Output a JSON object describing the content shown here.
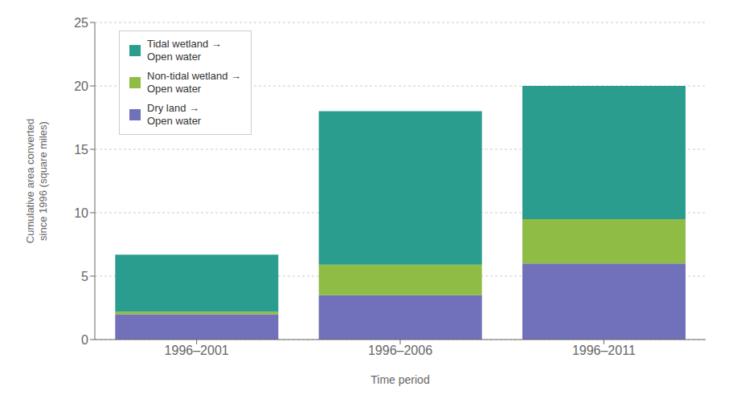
{
  "chart_data": {
    "type": "bar",
    "stacked": true,
    "xlabel": "Time period",
    "ylabel": "Cumulative area converted\nsince 1996 (square miles)",
    "categories": [
      "1996–2001",
      "1996–2006",
      "1996–2011"
    ],
    "series": [
      {
        "name": "Dry land →\nOpen water",
        "color": "#7070bb",
        "values": [
          2.0,
          3.5,
          6.0
        ]
      },
      {
        "name": "Non-tidal wetland →\nOpen water",
        "color": "#8fbc45",
        "values": [
          0.2,
          2.4,
          3.5
        ]
      },
      {
        "name": "Tidal wetland →\nOpen water",
        "color": "#2a9d8f",
        "values": [
          4.5,
          12.1,
          10.5
        ]
      }
    ],
    "ylim": [
      0,
      25
    ],
    "yticks": [
      0,
      5,
      10,
      15,
      20,
      25
    ],
    "grid": true,
    "legend": "upper left"
  }
}
